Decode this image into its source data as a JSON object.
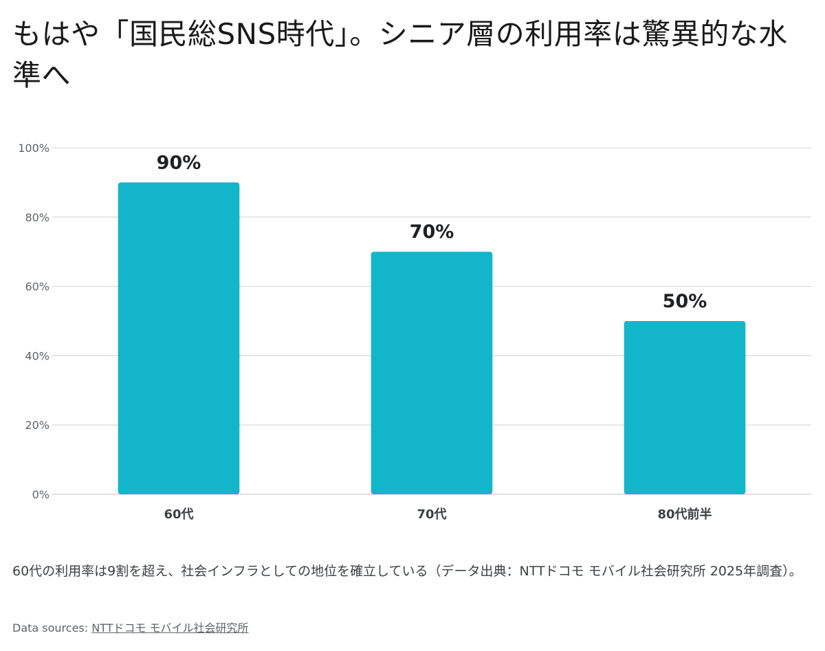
{
  "title": "もはや「国民総SNS時代」。シニア層の利用率は驚異的な水準へ",
  "chart_data": {
    "type": "bar",
    "categories": [
      "60代",
      "70代",
      "80代前半"
    ],
    "values": [
      90,
      70,
      50
    ],
    "data_labels": [
      "90%",
      "70%",
      "50%"
    ],
    "ylim": [
      0,
      100
    ],
    "yticks": [
      0,
      20,
      40,
      60,
      80,
      100
    ],
    "ytick_labels": [
      "0%",
      "20%",
      "40%",
      "60%",
      "80%",
      "100%"
    ],
    "grid": true,
    "bar_color": "#13b5cb",
    "grid_color": "#d0d0d0"
  },
  "caption": "60代の利用率は9割を超え、社会インフラとしての地位を確立している（データ出典：NTTドコモ モバイル社会研究所 2025年調査）。",
  "sources": {
    "label": "Data sources: ",
    "link_text": "NTTドコモ モバイル社会研究所"
  }
}
